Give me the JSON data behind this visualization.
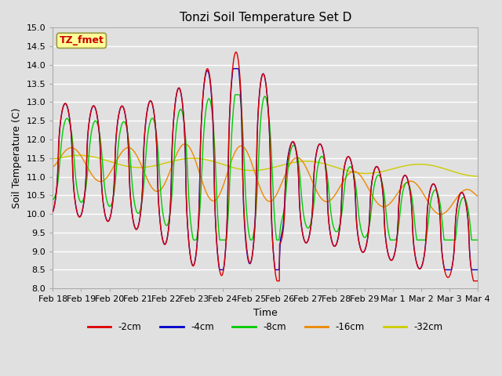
{
  "title": "Tonzi Soil Temperature Set D",
  "xlabel": "Time",
  "ylabel": "Soil Temperature (C)",
  "ylim": [
    8.0,
    15.0
  ],
  "yticks": [
    8.0,
    8.5,
    9.0,
    9.5,
    10.0,
    10.5,
    11.0,
    11.5,
    12.0,
    12.5,
    13.0,
    13.5,
    14.0,
    14.5,
    15.0
  ],
  "line_colors": {
    "-2cm": "#dd0000",
    "-4cm": "#0000cc",
    "-8cm": "#00cc00",
    "-16cm": "#ee8800",
    "-32cm": "#cccc00"
  },
  "legend_label": "TZ_fmet",
  "legend_box_color": "#ffff99",
  "legend_box_edge": "#999944",
  "legend_text_color": "#cc0000",
  "bg_color": "#e0e0e0",
  "plot_bg_color": "#e0e0e0",
  "grid_color": "#ffffff",
  "x_tick_labels": [
    "Feb 18",
    "Feb 19",
    "Feb 20",
    "Feb 21",
    "Feb 22",
    "Feb 23",
    "Feb 24",
    "Feb 25",
    "Feb 26",
    "Feb 27",
    "Feb 28",
    "Feb 29",
    "Mar 1",
    "Mar 2",
    "Mar 3",
    "Mar 4"
  ],
  "n_points": 1500
}
